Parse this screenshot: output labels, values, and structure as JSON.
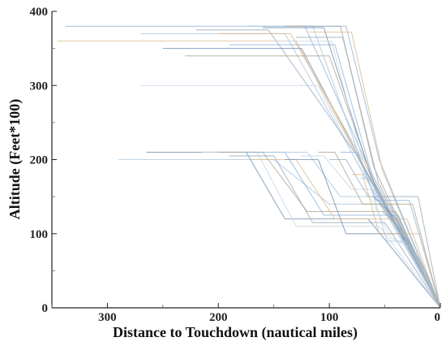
{
  "chart_data": {
    "type": "line",
    "xlabel": "Distance to Touchdown (nautical miles)",
    "ylabel": "Altitude (Feet*100)",
    "xlim": [
      350,
      0
    ],
    "ylim": [
      0,
      400
    ],
    "x_ticks": [
      300,
      200,
      100,
      0
    ],
    "y_ticks": [
      0,
      100,
      200,
      300,
      400
    ],
    "x_reversed": true,
    "grid": false,
    "legend": "none",
    "colors": [
      "#8fb3d9",
      "#d9b98c",
      "#a9c6de",
      "#6f8fb3",
      "#c7d6e6",
      "#b0a58c",
      "#9aa9b8"
    ],
    "series": [
      {
        "x": [
          338,
          122,
          68,
          0
        ],
        "y": [
          380,
          380,
          200,
          0
        ]
      },
      {
        "x": [
          345,
          130,
          70,
          0
        ],
        "y": [
          360,
          360,
          190,
          0
        ]
      },
      {
        "x": [
          270,
          140,
          80,
          0
        ],
        "y": [
          370,
          370,
          210,
          0
        ]
      },
      {
        "x": [
          250,
          125,
          65,
          0
        ],
        "y": [
          350,
          350,
          180,
          0
        ]
      },
      {
        "x": [
          270,
          110,
          75,
          0
        ],
        "y": [
          300,
          300,
          195,
          0
        ]
      },
      {
        "x": [
          230,
          100,
          60,
          0
        ],
        "y": [
          340,
          340,
          170,
          0
        ]
      },
      {
        "x": [
          220,
          155,
          75,
          0
        ],
        "y": [
          375,
          375,
          205,
          0
        ]
      },
      {
        "x": [
          190,
          95,
          58,
          0
        ],
        "y": [
          355,
          355,
          160,
          0
        ]
      },
      {
        "x": [
          200,
          135,
          70,
          0
        ],
        "y": [
          370,
          370,
          200,
          0
        ]
      },
      {
        "x": [
          175,
          115,
          68,
          0
        ],
        "y": [
          380,
          380,
          185,
          0
        ]
      },
      {
        "x": [
          160,
          105,
          62,
          0
        ],
        "y": [
          378,
          378,
          175,
          0
        ]
      },
      {
        "x": [
          150,
          98,
          72,
          0
        ],
        "y": [
          360,
          360,
          210,
          0
        ]
      },
      {
        "x": [
          140,
          90,
          60,
          0
        ],
        "y": [
          380,
          380,
          190,
          0
        ]
      },
      {
        "x": [
          130,
          88,
          56,
          0
        ],
        "y": [
          365,
          365,
          170,
          0
        ]
      },
      {
        "x": [
          125,
          85,
          55,
          0
        ],
        "y": [
          380,
          380,
          200,
          0
        ]
      },
      {
        "x": [
          118,
          80,
          52,
          0
        ],
        "y": [
          372,
          372,
          185,
          0
        ]
      },
      {
        "x": [
          290,
          150,
          100,
          45,
          0
        ],
        "y": [
          200,
          200,
          140,
          140,
          0
        ]
      },
      {
        "x": [
          265,
          175,
          140,
          65,
          0
        ],
        "y": [
          210,
          210,
          120,
          120,
          0
        ]
      },
      {
        "x": [
          215,
          165,
          130,
          55,
          0
        ],
        "y": [
          210,
          210,
          110,
          110,
          0
        ]
      },
      {
        "x": [
          200,
          160,
          120,
          40,
          0
        ],
        "y": [
          210,
          210,
          130,
          130,
          0
        ]
      },
      {
        "x": [
          190,
          150,
          115,
          50,
          0
        ],
        "y": [
          205,
          205,
          115,
          115,
          0
        ]
      },
      {
        "x": [
          180,
          140,
          105,
          38,
          0
        ],
        "y": [
          210,
          210,
          125,
          125,
          0
        ]
      },
      {
        "x": [
          170,
          130,
          95,
          30,
          0
        ],
        "y": [
          200,
          200,
          120,
          120,
          0
        ]
      },
      {
        "x": [
          150,
          120,
          90,
          42,
          0
        ],
        "y": [
          210,
          210,
          150,
          150,
          0
        ]
      },
      {
        "x": [
          140,
          110,
          85,
          35,
          0
        ],
        "y": [
          200,
          200,
          100,
          100,
          0
        ]
      },
      {
        "x": [
          125,
          105,
          80,
          60,
          0
        ],
        "y": [
          205,
          205,
          160,
          160,
          0
        ]
      },
      {
        "x": [
          110,
          95,
          70,
          25,
          0
        ],
        "y": [
          210,
          210,
          140,
          140,
          0
        ]
      },
      {
        "x": [
          100,
          85,
          65,
          20,
          0
        ],
        "y": [
          200,
          200,
          150,
          150,
          0
        ]
      },
      {
        "x": [
          90,
          75,
          58,
          28,
          0
        ],
        "y": [
          210,
          210,
          145,
          145,
          0
        ]
      },
      {
        "x": [
          80,
          70,
          55,
          18,
          0
        ],
        "y": [
          180,
          180,
          100,
          100,
          0
        ]
      },
      {
        "x": [
          72,
          65,
          48,
          32,
          0
        ],
        "y": [
          175,
          175,
          90,
          90,
          0
        ]
      },
      {
        "x": [
          60,
          40,
          22,
          0
        ],
        "y": [
          150,
          120,
          70,
          0
        ]
      },
      {
        "x": [
          65,
          45,
          25,
          0
        ],
        "y": [
          155,
          95,
          80,
          0
        ]
      },
      {
        "x": [
          55,
          38,
          20,
          0
        ],
        "y": [
          140,
          110,
          60,
          0
        ]
      },
      {
        "x": [
          52,
          35,
          15,
          0
        ],
        "y": [
          130,
          105,
          55,
          0
        ]
      },
      {
        "x": [
          48,
          30,
          12,
          0
        ],
        "y": [
          128,
          90,
          45,
          0
        ]
      }
    ]
  }
}
